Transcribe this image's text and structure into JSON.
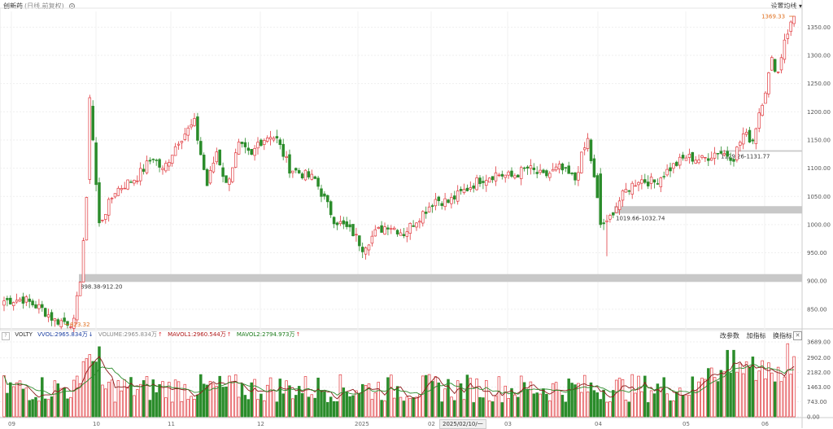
{
  "header": {
    "title": "创新药",
    "subtitle": "(日线,前复权)",
    "settings_label": "设置均线 ▾"
  },
  "price_axis": {
    "ticks": [
      "1350.00",
      "1300.00",
      "1250.00",
      "1200.00",
      "1150.00",
      "1100.00",
      "1050.00",
      "1000.00",
      "950.00",
      "900.00",
      "850.00"
    ],
    "tick_values": [
      1350,
      1300,
      1250,
      1200,
      1150,
      1100,
      1050,
      1000,
      950,
      900,
      850
    ],
    "min": 818,
    "max": 1378
  },
  "volume_axis": {
    "ticks": [
      "3689.00",
      "2902.00",
      "2182.00",
      "1463.00",
      "743.00",
      "0.00"
    ],
    "tick_values": [
      3689,
      2902,
      2182,
      1463,
      743,
      0
    ],
    "max": 3689
  },
  "annotations": {
    "high_label": "1369.33",
    "low_label": "823.32",
    "zone1_label": "898.38-912.20",
    "zone2_label": "1019.66-1032.74",
    "zone3_label": "1129.26-1131.77"
  },
  "volume_header": {
    "q": "?",
    "volty": "VOLTY",
    "vvol": "VVOL:2965.834万",
    "volume": "VOLUME:2965.834万",
    "mavol1": "MAVOL1:2960.544万",
    "mavol2": "MAVOL2:2794.973万",
    "tools": [
      "改参数",
      "加指标",
      "换指标"
    ],
    "close": "✕"
  },
  "x_axis": {
    "labels": [
      "09",
      "10",
      "11",
      "12",
      "2025",
      "02",
      "03",
      "04",
      "05",
      "06"
    ],
    "date_box": "2025/02/10/一"
  },
  "colors": {
    "up": "#e0393e",
    "down": "#2b8c2b",
    "zone": "#c8c8c8",
    "ma1": "#8b1a1a",
    "ma2": "#2b8c2b",
    "high_color": "#e07020",
    "vol_header_blue": "#1a3da0",
    "vol_header_red": "#b01818",
    "vol_header_green": "#1a7a1a"
  },
  "chart_data": {
    "type": "candlestick",
    "anchors": [
      [
        0,
        865
      ],
      [
        6,
        868
      ],
      [
        12,
        850
      ],
      [
        16,
        830
      ],
      [
        22,
        826
      ],
      [
        24,
        905
      ],
      [
        26,
        1040
      ],
      [
        27,
        1210
      ],
      [
        28,
        1140
      ],
      [
        30,
        1000
      ],
      [
        35,
        1060
      ],
      [
        42,
        1085
      ],
      [
        47,
        1120
      ],
      [
        50,
        1095
      ],
      [
        55,
        1150
      ],
      [
        60,
        1180
      ],
      [
        64,
        1070
      ],
      [
        67,
        1130
      ],
      [
        70,
        1070
      ],
      [
        74,
        1140
      ],
      [
        78,
        1120
      ],
      [
        80,
        1145
      ],
      [
        84,
        1160
      ],
      [
        86,
        1150
      ],
      [
        90,
        1100
      ],
      [
        98,
        1080
      ],
      [
        104,
        1010
      ],
      [
        110,
        985
      ],
      [
        113,
        960
      ],
      [
        117,
        985
      ],
      [
        121,
        1000
      ],
      [
        126,
        985
      ],
      [
        131,
        1015
      ],
      [
        136,
        1045
      ],
      [
        140,
        1040
      ],
      [
        145,
        1060
      ],
      [
        150,
        1080
      ],
      [
        155,
        1090
      ],
      [
        160,
        1085
      ],
      [
        165,
        1100
      ],
      [
        170,
        1085
      ],
      [
        175,
        1100
      ],
      [
        180,
        1080
      ],
      [
        182,
        1120
      ],
      [
        184,
        1150
      ],
      [
        186,
        1080
      ],
      [
        188,
        1005
      ],
      [
        190,
        1000
      ],
      [
        192,
        1025
      ],
      [
        196,
        1060
      ],
      [
        200,
        1080
      ],
      [
        205,
        1075
      ],
      [
        210,
        1100
      ],
      [
        215,
        1120
      ],
      [
        220,
        1115
      ],
      [
        225,
        1130
      ],
      [
        230,
        1120
      ],
      [
        233,
        1160
      ],
      [
        236,
        1150
      ],
      [
        238,
        1200
      ],
      [
        240,
        1240
      ],
      [
        242,
        1290
      ],
      [
        244,
        1270
      ],
      [
        246,
        1330
      ],
      [
        248,
        1355
      ],
      [
        249,
        1369
      ]
    ],
    "annotated": {
      "high": 1369.33,
      "low": 823.32
    }
  }
}
